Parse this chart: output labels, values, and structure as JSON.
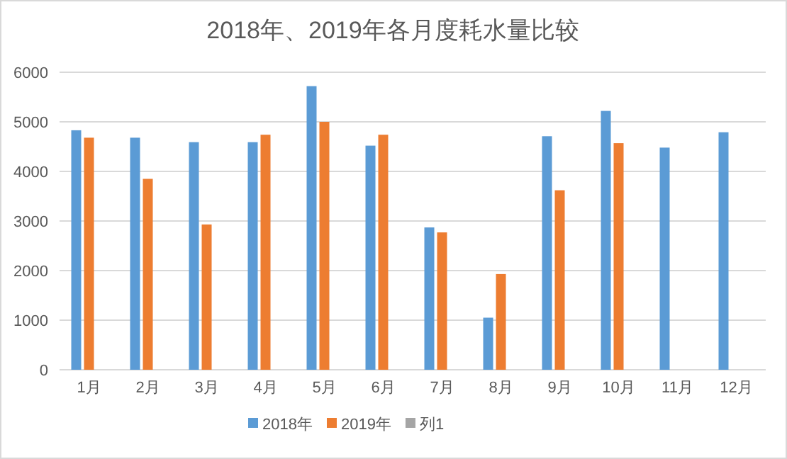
{
  "chart_data": {
    "type": "bar",
    "title": "2018年、2019年各月度耗水量比较",
    "categories": [
      "1月",
      "2月",
      "3月",
      "4月",
      "5月",
      "6月",
      "7月",
      "8月",
      "9月",
      "10月",
      "11月",
      "12月"
    ],
    "series": [
      {
        "name": "2018年",
        "color": "#5b9bd5",
        "values": [
          4830,
          4680,
          4590,
          4590,
          5720,
          4520,
          2870,
          1050,
          4710,
          5220,
          4480,
          4790
        ]
      },
      {
        "name": "2019年",
        "color": "#ed7d31",
        "values": [
          4680,
          3850,
          2930,
          4740,
          5000,
          4740,
          2770,
          1930,
          3620,
          4570,
          null,
          null
        ]
      },
      {
        "name": "列1",
        "color": "#a5a5a5",
        "values": [
          null,
          null,
          null,
          null,
          null,
          null,
          null,
          null,
          null,
          null,
          null,
          null
        ]
      }
    ],
    "ylim": [
      0,
      6000
    ],
    "yticks": [
      0,
      1000,
      2000,
      3000,
      4000,
      5000,
      6000
    ],
    "grid": "y",
    "legend": "bottom"
  }
}
